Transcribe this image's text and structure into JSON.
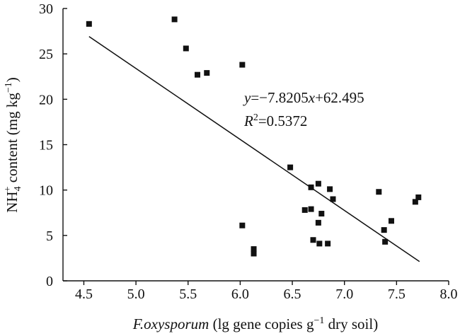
{
  "chart_data": {
    "type": "scatter",
    "xlabel": {
      "italic": "F.oxysporum",
      "rest": " (lg gene copies g",
      "sup": "−1",
      "end": " dry soil)"
    },
    "ylabel": {
      "pre": "NH",
      "sub": "4",
      "sup": "+",
      "rest": " content (mg kg",
      "sup2": "−1",
      "end": ")"
    },
    "xlim": [
      4.3,
      8.0
    ],
    "ylim": [
      0,
      30
    ],
    "xticks": [
      "4.5",
      "5.0",
      "5.5",
      "6.0",
      "6.5",
      "7.0",
      "7.5",
      "8.0"
    ],
    "yticks": [
      "0",
      "5",
      "10",
      "15",
      "20",
      "25",
      "30"
    ],
    "grid": false,
    "points": [
      {
        "x": 4.55,
        "y": 28.3
      },
      {
        "x": 5.37,
        "y": 28.8
      },
      {
        "x": 5.48,
        "y": 25.6
      },
      {
        "x": 5.59,
        "y": 22.7
      },
      {
        "x": 5.68,
        "y": 22.9
      },
      {
        "x": 6.02,
        "y": 23.8
      },
      {
        "x": 6.48,
        "y": 12.5
      },
      {
        "x": 6.02,
        "y": 6.1
      },
      {
        "x": 6.13,
        "y": 3.5
      },
      {
        "x": 6.13,
        "y": 3.0
      },
      {
        "x": 6.62,
        "y": 7.8
      },
      {
        "x": 6.68,
        "y": 10.3
      },
      {
        "x": 6.68,
        "y": 7.9
      },
      {
        "x": 6.7,
        "y": 4.5
      },
      {
        "x": 6.75,
        "y": 10.7
      },
      {
        "x": 6.75,
        "y": 6.4
      },
      {
        "x": 6.76,
        "y": 4.1
      },
      {
        "x": 6.78,
        "y": 7.4
      },
      {
        "x": 6.84,
        "y": 4.1
      },
      {
        "x": 6.86,
        "y": 10.1
      },
      {
        "x": 6.89,
        "y": 9.0
      },
      {
        "x": 7.33,
        "y": 9.8
      },
      {
        "x": 7.38,
        "y": 5.6
      },
      {
        "x": 7.39,
        "y": 4.3
      },
      {
        "x": 7.45,
        "y": 6.6
      },
      {
        "x": 7.68,
        "y": 8.7
      },
      {
        "x": 7.71,
        "y": 9.2
      }
    ],
    "trendline": {
      "slope": -7.8205,
      "intercept": 62.495,
      "x_range": [
        4.55,
        7.72
      ]
    },
    "annotation": {
      "eq_y": "y",
      "eq_x": "x",
      "eq_mid": "=−7.8205",
      "eq_end": "+62.495",
      "r_label": "R",
      "r_sup": "2",
      "r_value": "=0.5372"
    }
  }
}
